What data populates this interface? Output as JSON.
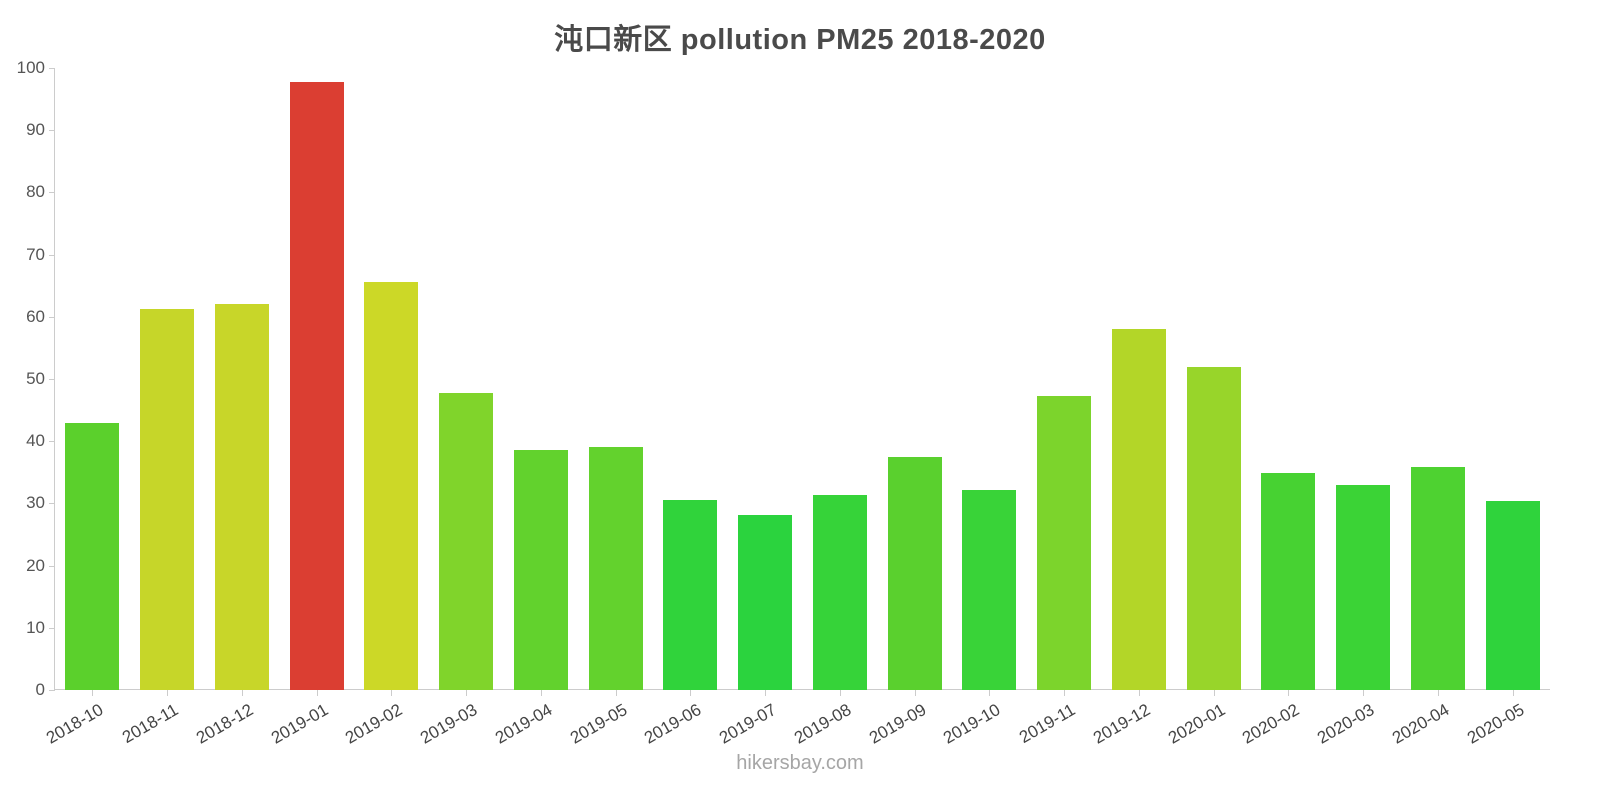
{
  "title": "沌口新区 pollution PM25 2018-2020",
  "footer": "hikersbay.com",
  "chart_data": {
    "type": "bar",
    "title": "沌口新区 pollution PM25 2018-2020",
    "categories": [
      "2018-10",
      "2018-11",
      "2018-12",
      "2019-01",
      "2019-02",
      "2019-03",
      "2019-04",
      "2019-05",
      "2019-06",
      "2019-07",
      "2019-08",
      "2019-09",
      "2019-10",
      "2019-11",
      "2019-12",
      "2020-01",
      "2020-02",
      "2020-03",
      "2020-04",
      "2020-05"
    ],
    "values": [
      43,
      61.2,
      62.1,
      97.8,
      65.6,
      47.8,
      38.6,
      39,
      30.6,
      28.2,
      31.4,
      37.4,
      32.2,
      47.2,
      58,
      52,
      34.9,
      32.9,
      35.9,
      30.4
    ],
    "colors": [
      "#5bd02c",
      "#c6d629",
      "#c8d629",
      "#db3e32",
      "#ccd827",
      "#80d42b",
      "#62d22d",
      "#63d22d",
      "#30d33b",
      "#2bd33e",
      "#36d339",
      "#5ad02e",
      "#39d338",
      "#7cd42c",
      "#b3d628",
      "#98d52a",
      "#47d232",
      "#3bd336",
      "#4ed231",
      "#2fd33c"
    ],
    "xlabel": "",
    "ylabel": "",
    "ylim": [
      0,
      100
    ],
    "yticks": [
      0,
      10,
      20,
      30,
      40,
      50,
      60,
      70,
      80,
      90,
      100
    ],
    "grid": false,
    "legend": false
  }
}
